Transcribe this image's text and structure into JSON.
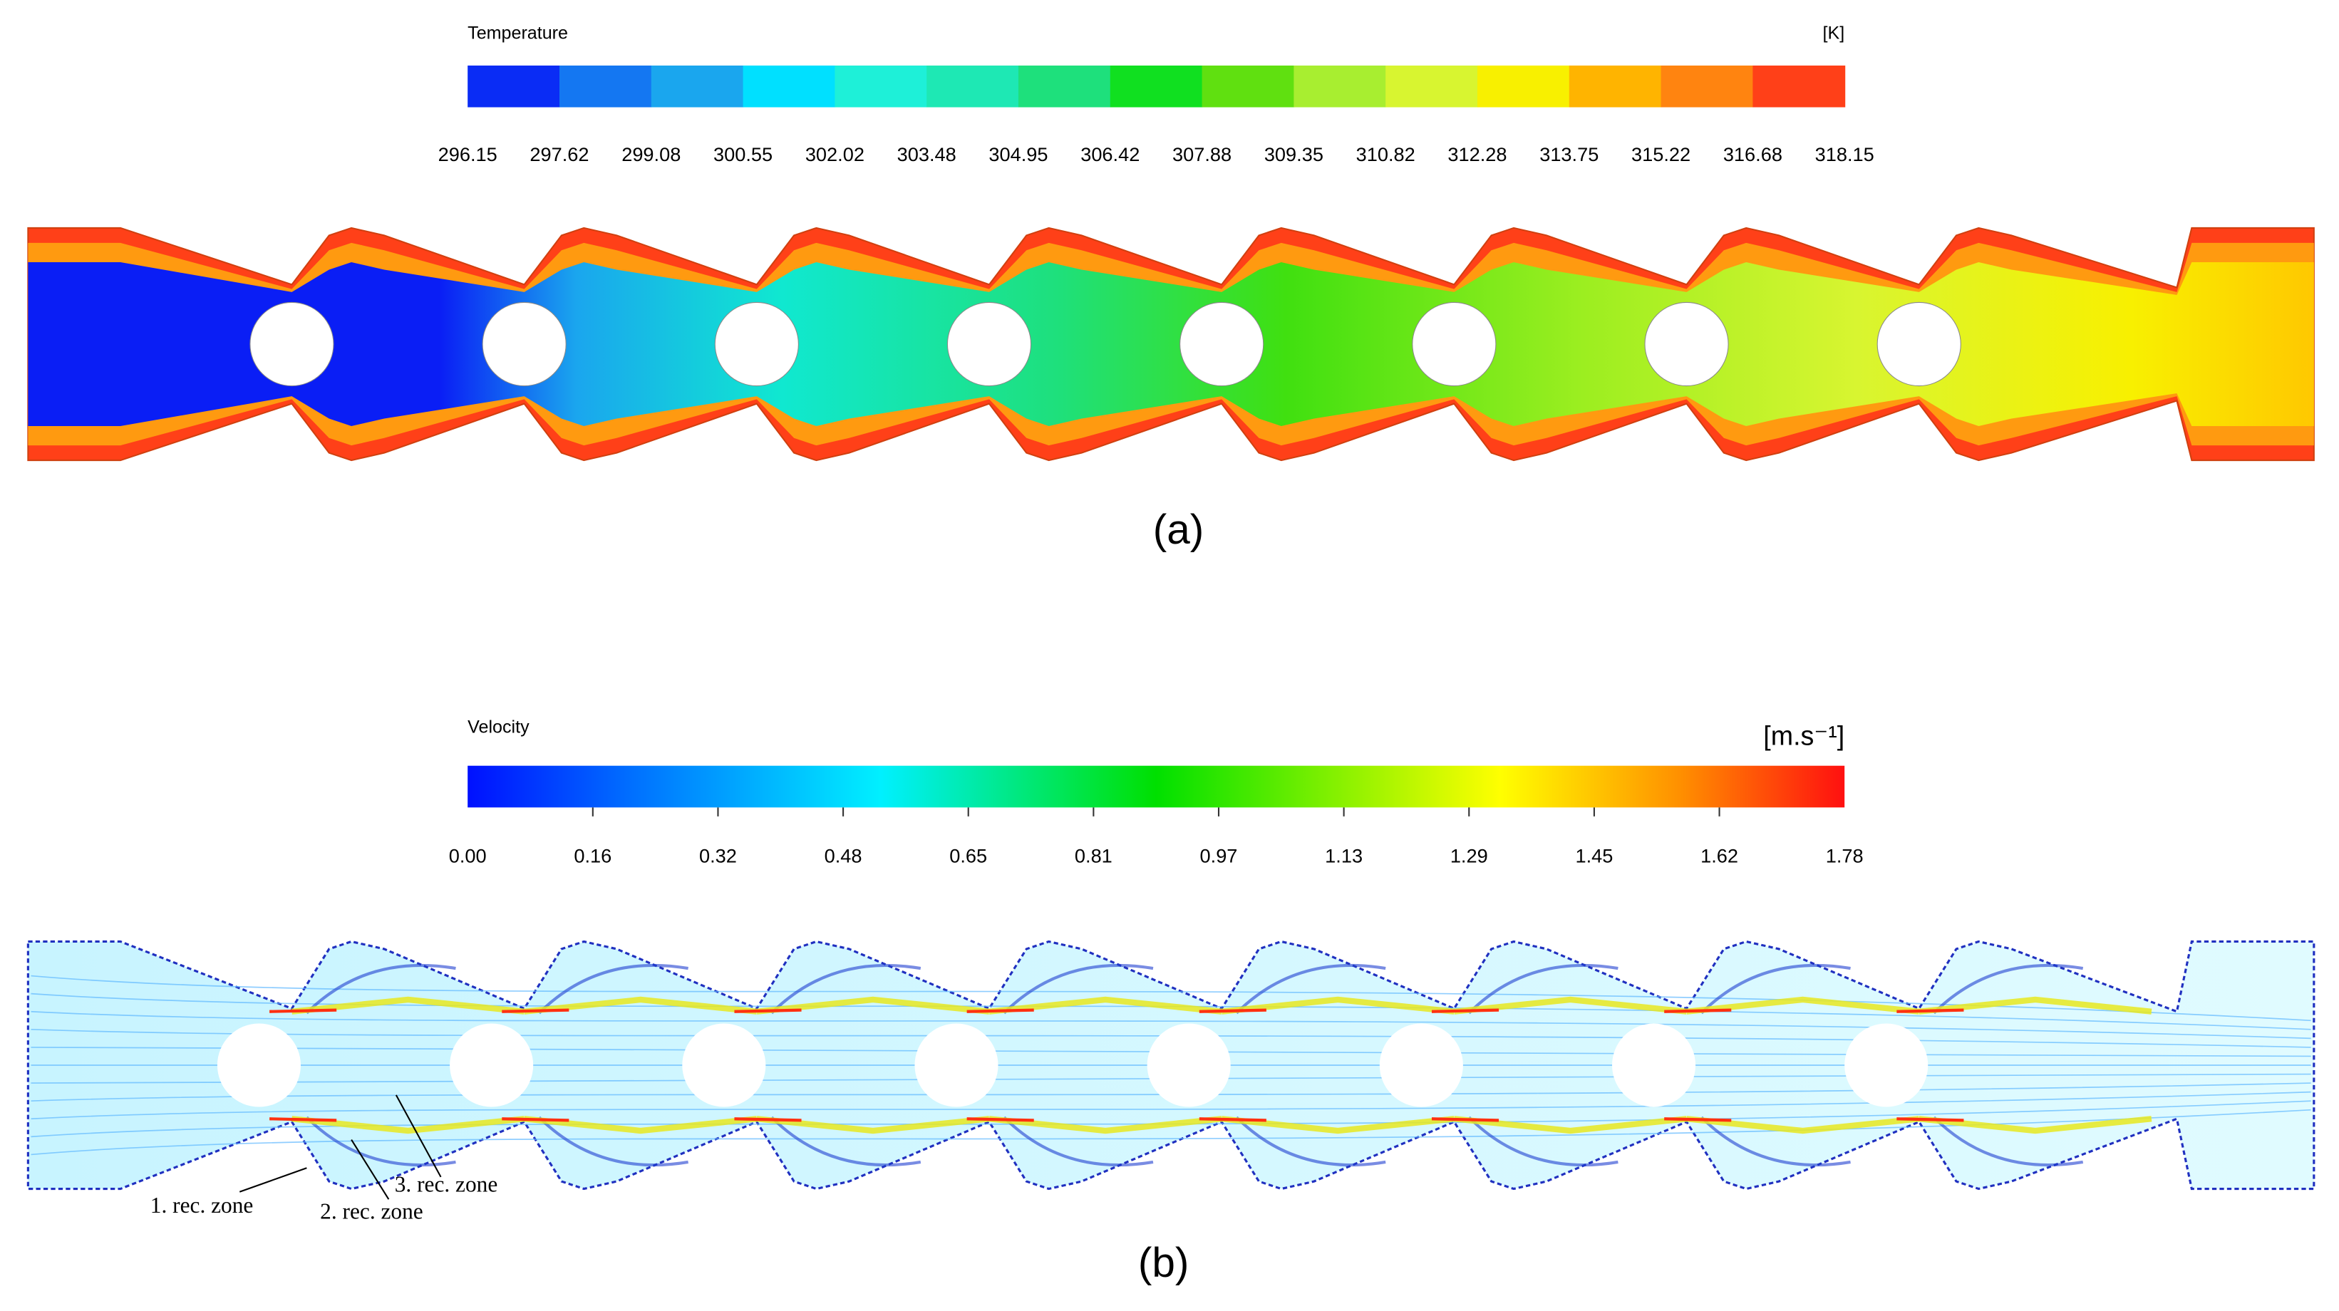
{
  "panel_a": {
    "colorbar": {
      "title": "Temperature",
      "unit": "[K]",
      "ticks": [
        "296.15",
        "297.62",
        "299.08",
        "300.55",
        "302.02",
        "303.48",
        "304.95",
        "306.42",
        "307.88",
        "309.35",
        "310.82",
        "312.28",
        "313.75",
        "315.22",
        "316.68",
        "318.15"
      ]
    },
    "caption": "(a)"
  },
  "panel_b": {
    "colorbar": {
      "title": "Velocity",
      "unit": "[m.s⁻¹]",
      "ticks": [
        "0.00",
        "0.16",
        "0.32",
        "0.48",
        "0.65",
        "0.81",
        "0.97",
        "1.13",
        "1.29",
        "1.45",
        "1.62",
        "1.78"
      ]
    },
    "annotations": [
      "1. rec. zone",
      "2. rec. zone",
      "3. rec. zone"
    ],
    "caption": "(b)"
  }
}
